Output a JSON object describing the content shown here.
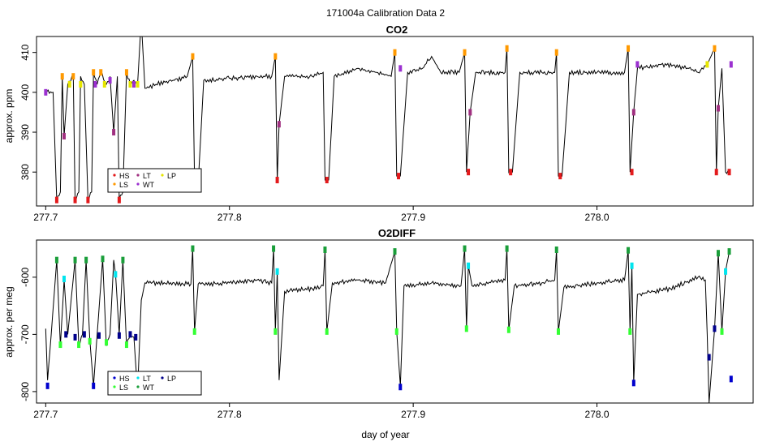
{
  "figure": {
    "title": "171004a   Calibration Data 2",
    "xlabel": "day of year"
  },
  "chart_data": [
    {
      "type": "scatter",
      "title": "CO2",
      "xlabel": "",
      "ylabel": "approx. ppm",
      "xlim": [
        277.695,
        278.085
      ],
      "ylim": [
        371.5,
        414
      ],
      "xticks": [
        "277.7",
        "277.8",
        "277.9",
        "278.0"
      ],
      "yticks": [
        "380",
        "390",
        "400",
        "410"
      ],
      "grid": false,
      "legend": {
        "placement": "bottom-left",
        "entries": [
          {
            "label": "HS",
            "color": "#e31a1c"
          },
          {
            "label": "LS",
            "color": "#ff9900"
          },
          {
            "label": "LT",
            "color": "#a03080"
          },
          {
            "label": "WT",
            "color": "#9b30d0"
          },
          {
            "label": "LP",
            "color": "#e6e600"
          }
        ]
      },
      "trace_color": "#000000",
      "trace_points": [
        [
          277.7,
          400
        ],
        [
          277.704,
          400
        ],
        [
          277.706,
          373
        ],
        [
          277.708,
          375
        ],
        [
          277.709,
          404
        ],
        [
          277.71,
          389
        ],
        [
          277.712,
          402
        ],
        [
          277.715,
          404
        ],
        [
          277.716,
          373
        ],
        [
          277.718,
          375
        ],
        [
          277.719,
          404
        ],
        [
          277.721,
          402
        ],
        [
          277.723,
          373
        ],
        [
          277.725,
          375
        ],
        [
          277.726,
          405
        ],
        [
          277.728,
          402
        ],
        [
          277.73,
          405
        ],
        [
          277.733,
          402
        ],
        [
          277.735,
          404
        ],
        [
          277.737,
          390
        ],
        [
          277.739,
          404
        ],
        [
          277.74,
          373
        ],
        [
          277.742,
          375
        ],
        [
          277.744,
          405
        ],
        [
          277.746,
          402
        ],
        [
          277.748,
          403
        ],
        [
          277.75,
          402
        ],
        [
          277.752,
          418
        ],
        [
          277.754,
          401
        ],
        [
          277.76,
          402
        ],
        [
          277.77,
          403
        ],
        [
          277.777,
          404
        ],
        [
          277.78,
          409
        ],
        [
          277.781,
          378
        ],
        [
          277.783,
          377
        ],
        [
          277.786,
          403
        ],
        [
          277.8,
          403.5
        ],
        [
          277.815,
          404
        ],
        [
          277.823,
          404
        ],
        [
          277.825,
          409
        ],
        [
          277.826,
          378
        ],
        [
          277.827,
          392
        ],
        [
          277.83,
          404
        ],
        [
          277.845,
          404
        ],
        [
          277.851,
          405
        ],
        [
          277.852,
          378
        ],
        [
          277.854,
          378
        ],
        [
          277.857,
          404
        ],
        [
          277.87,
          406
        ],
        [
          277.88,
          405
        ],
        [
          277.888,
          404
        ],
        [
          277.89,
          410
        ],
        [
          277.891,
          379
        ],
        [
          277.893,
          379
        ],
        [
          277.897,
          405
        ],
        [
          277.905,
          406
        ],
        [
          277.91,
          409
        ],
        [
          277.915,
          405
        ],
        [
          277.925,
          405
        ],
        [
          277.928,
          410
        ],
        [
          277.929,
          380
        ],
        [
          277.931,
          395
        ],
        [
          277.934,
          405
        ],
        [
          277.95,
          405
        ],
        [
          277.951,
          411
        ],
        [
          277.952,
          380
        ],
        [
          277.954,
          380
        ],
        [
          277.958,
          405
        ],
        [
          277.97,
          405
        ],
        [
          277.977,
          405
        ],
        [
          277.978,
          410
        ],
        [
          277.979,
          379
        ],
        [
          277.981,
          379
        ],
        [
          277.985,
          405
        ],
        [
          278.0,
          405
        ],
        [
          278.015,
          405
        ],
        [
          278.017,
          411
        ],
        [
          278.018,
          380
        ],
        [
          278.02,
          395
        ],
        [
          278.022,
          406
        ],
        [
          278.035,
          407
        ],
        [
          278.05,
          406
        ],
        [
          278.055,
          405
        ],
        [
          278.06,
          407
        ],
        [
          278.064,
          411
        ],
        [
          278.065,
          380
        ],
        [
          278.066,
          396
        ],
        [
          278.068,
          406
        ],
        [
          278.07,
          380
        ],
        [
          278.072,
          380
        ]
      ],
      "calibration_groups": [
        {
          "label": "HS",
          "x": [
            277.706,
            277.716,
            277.723,
            277.74,
            277.782,
            277.826,
            277.853,
            277.892,
            277.93,
            277.953,
            277.98,
            278.019,
            278.065,
            278.072
          ],
          "y": [
            373,
            373,
            373,
            373,
            377,
            378,
            378,
            379,
            380,
            380,
            379,
            380,
            380,
            380
          ]
        },
        {
          "label": "LS",
          "x": [
            277.709,
            277.715,
            277.726,
            277.73,
            277.744,
            277.78,
            277.825,
            277.89,
            277.928,
            277.951,
            277.978,
            278.017,
            278.064
          ],
          "y": [
            404,
            404,
            405,
            405,
            405,
            409,
            409,
            410,
            410,
            411,
            410,
            411,
            411
          ]
        },
        {
          "label": "LT",
          "x": [
            277.71,
            277.737,
            277.827,
            277.931,
            278.02,
            278.066
          ],
          "y": [
            389,
            390,
            392,
            395,
            395,
            396
          ]
        },
        {
          "label": "WT",
          "x": [
            277.7,
            277.727,
            277.735,
            277.748,
            277.893,
            278.022,
            278.073
          ],
          "y": [
            400,
            402,
            403,
            402,
            406,
            407,
            407
          ]
        },
        {
          "label": "LP",
          "x": [
            277.713,
            277.719,
            277.732,
            277.746,
            277.75,
            278.06
          ],
          "y": [
            402,
            402,
            402,
            402,
            402,
            407
          ]
        }
      ]
    },
    {
      "type": "scatter",
      "title": "O2DIFF",
      "xlabel": "day of year",
      "ylabel": "approx. per meg",
      "xlim": [
        277.695,
        278.085
      ],
      "ylim": [
        -820,
        -535
      ],
      "xticks": [
        "277.7",
        "277.8",
        "277.9",
        "278.0"
      ],
      "yticks": [
        "-800",
        "-700",
        "-600"
      ],
      "grid": false,
      "legend": {
        "placement": "bottom-left",
        "entries": [
          {
            "label": "HS",
            "color": "#0000cd"
          },
          {
            "label": "LS",
            "color": "#33ff33"
          },
          {
            "label": "LT",
            "color": "#00e5ee"
          },
          {
            "label": "WT",
            "color": "#1a9e3a"
          },
          {
            "label": "LP",
            "color": "#00008b"
          }
        ]
      },
      "trace_color": "#000000",
      "trace_points": [
        [
          277.7,
          -690
        ],
        [
          277.701,
          -780
        ],
        [
          277.703,
          -700
        ],
        [
          277.706,
          -570
        ],
        [
          277.708,
          -720
        ],
        [
          277.71,
          -605
        ],
        [
          277.712,
          -700
        ],
        [
          277.716,
          -570
        ],
        [
          277.718,
          -720
        ],
        [
          277.72,
          -700
        ],
        [
          277.722,
          -570
        ],
        [
          277.724,
          -710
        ],
        [
          277.726,
          -790
        ],
        [
          277.728,
          -700
        ],
        [
          277.731,
          -568
        ],
        [
          277.733,
          -720
        ],
        [
          277.735,
          -700
        ],
        [
          277.737,
          -570
        ],
        [
          277.738,
          -595
        ],
        [
          277.74,
          -700
        ],
        [
          277.742,
          -570
        ],
        [
          277.744,
          -720
        ],
        [
          277.746,
          -700
        ],
        [
          277.748,
          -705
        ],
        [
          277.75,
          -800
        ],
        [
          277.752,
          -640
        ],
        [
          277.754,
          -610
        ],
        [
          277.77,
          -610
        ],
        [
          277.779,
          -612
        ],
        [
          277.78,
          -550
        ],
        [
          277.781,
          -695
        ],
        [
          277.783,
          -612
        ],
        [
          277.8,
          -610
        ],
        [
          277.815,
          -605
        ],
        [
          277.823,
          -610
        ],
        [
          277.824,
          -550
        ],
        [
          277.825,
          -695
        ],
        [
          277.826,
          -590
        ],
        [
          277.827,
          -780
        ],
        [
          277.83,
          -625
        ],
        [
          277.845,
          -620
        ],
        [
          277.851,
          -615
        ],
        [
          277.852,
          -552
        ],
        [
          277.853,
          -695
        ],
        [
          277.856,
          -610
        ],
        [
          277.87,
          -605
        ],
        [
          277.885,
          -610
        ],
        [
          277.89,
          -555
        ],
        [
          277.891,
          -695
        ],
        [
          277.893,
          -790
        ],
        [
          277.895,
          -615
        ],
        [
          277.91,
          -610
        ],
        [
          277.926,
          -615
        ],
        [
          277.928,
          -550
        ],
        [
          277.929,
          -690
        ],
        [
          277.93,
          -580
        ],
        [
          277.932,
          -615
        ],
        [
          277.95,
          -605
        ],
        [
          277.951,
          -550
        ],
        [
          277.952,
          -692
        ],
        [
          277.955,
          -615
        ],
        [
          277.97,
          -610
        ],
        [
          277.977,
          -605
        ],
        [
          277.978,
          -552
        ],
        [
          277.979,
          -695
        ],
        [
          277.982,
          -618
        ],
        [
          278.0,
          -610
        ],
        [
          278.015,
          -605
        ],
        [
          278.017,
          -553
        ],
        [
          278.018,
          -695
        ],
        [
          278.019,
          -580
        ],
        [
          278.02,
          -785
        ],
        [
          278.022,
          -630
        ],
        [
          278.04,
          -620
        ],
        [
          278.055,
          -600
        ],
        [
          278.059,
          -605
        ],
        [
          278.06,
          -700
        ],
        [
          278.061,
          -820
        ],
        [
          278.064,
          -690
        ],
        [
          278.066,
          -558
        ],
        [
          278.068,
          -695
        ],
        [
          278.07,
          -590
        ],
        [
          278.072,
          -555
        ]
      ],
      "calibration_groups": [
        {
          "label": "HS",
          "x": [
            277.701,
            277.726,
            277.893,
            278.02,
            278.073
          ],
          "y": [
            -790,
            -790,
            -792,
            -785,
            -778
          ]
        },
        {
          "label": "LS",
          "x": [
            277.708,
            277.718,
            277.724,
            277.733,
            277.744,
            277.781,
            277.825,
            277.853,
            277.891,
            277.929,
            277.952,
            277.979,
            278.018,
            278.068
          ],
          "y": [
            -718,
            -718,
            -712,
            -714,
            -718,
            -695,
            -695,
            -695,
            -695,
            -690,
            -692,
            -695,
            -695,
            -695
          ]
        },
        {
          "label": "LT",
          "x": [
            277.71,
            277.738,
            277.826,
            277.93,
            278.019,
            278.07
          ],
          "y": [
            -603,
            -595,
            -590,
            -580,
            -580,
            -590
          ]
        },
        {
          "label": "WT",
          "x": [
            277.706,
            277.716,
            277.722,
            277.731,
            277.742,
            277.78,
            277.824,
            277.852,
            277.89,
            277.928,
            277.951,
            277.978,
            278.017,
            278.066,
            278.072
          ],
          "y": [
            -570,
            -570,
            -570,
            -568,
            -570,
            -550,
            -550,
            -552,
            -555,
            -550,
            -550,
            -552,
            -553,
            -558,
            -555
          ]
        },
        {
          "label": "LP",
          "x": [
            277.711,
            277.716,
            277.721,
            277.729,
            277.74,
            277.746,
            277.749,
            278.061,
            278.064
          ],
          "y": [
            -700,
            -705,
            -700,
            -702,
            -702,
            -700,
            -705,
            -740,
            -690
          ]
        }
      ]
    }
  ]
}
